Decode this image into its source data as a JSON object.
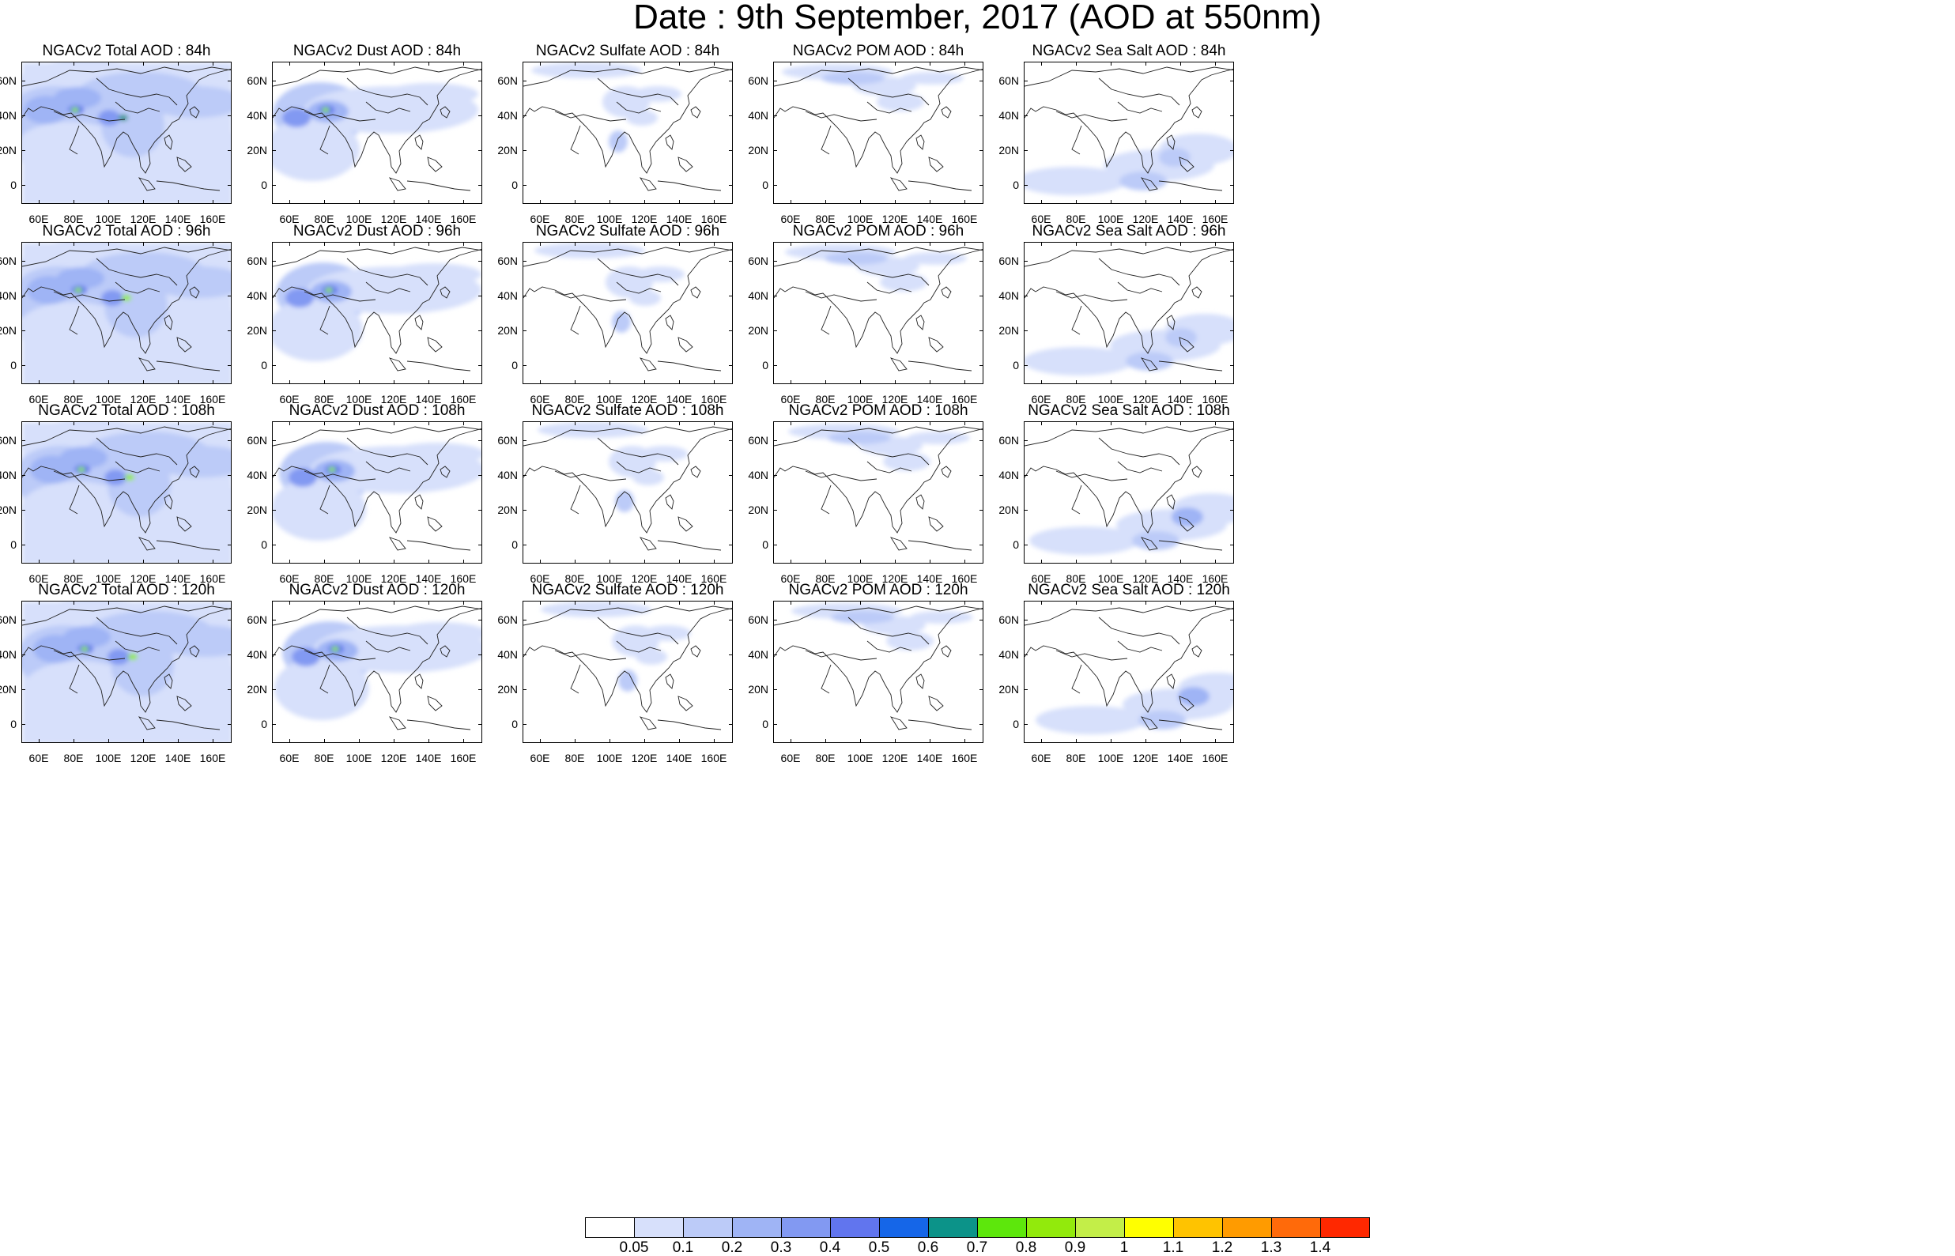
{
  "title": "Date : 9th September, 2017 (AOD at 550nm)",
  "lat_ticks": [
    "60N",
    "40N",
    "20N",
    "0"
  ],
  "lon_ticks": [
    "60E",
    "80E",
    "100E",
    "120E",
    "140E",
    "160E"
  ],
  "panels": [
    [
      "NGACv2 Total AOD : 84h",
      "NGACv2 Dust AOD : 84h",
      "NGACv2 Sulfate AOD : 84h",
      "NGACv2 POM AOD : 84h",
      "NGACv2 Sea Salt AOD : 84h"
    ],
    [
      "NGACv2 Total AOD : 96h",
      "NGACv2 Dust AOD : 96h",
      "NGACv2 Sulfate AOD : 96h",
      "NGACv2 POM AOD : 96h",
      "NGACv2 Sea Salt AOD : 96h"
    ],
    [
      "NGACv2 Total AOD : 108h",
      "NGACv2 Dust AOD : 108h",
      "NGACv2 Sulfate AOD : 108h",
      "NGACv2 POM AOD : 108h",
      "NGACv2 Sea Salt AOD : 108h"
    ],
    [
      "NGACv2 Total AOD : 120h",
      "NGACv2 Dust AOD : 120h",
      "NGACv2 Sulfate AOD : 120h",
      "NGACv2 POM AOD : 120h",
      "NGACv2 Sea Salt  AOD : 120h"
    ]
  ],
  "colorbar": {
    "labels": [
      "0.05",
      "0.1",
      "0.2",
      "0.3",
      "0.4",
      "0.5",
      "0.6",
      "0.7",
      "0.8",
      "0.9",
      "1",
      "1.1",
      "1.2",
      "1.3",
      "1.4"
    ],
    "colors": [
      "#ffffff",
      "#d7e0fb",
      "#bccbf8",
      "#9fb4f5",
      "#8299f2",
      "#6175ee",
      "#1566e8",
      "#0c9389",
      "#5de70c",
      "#92ea0c",
      "#c3ee48",
      "#ffff00",
      "#ffc300",
      "#ff9b00",
      "#ff6a0a",
      "#ff2800"
    ]
  }
}
